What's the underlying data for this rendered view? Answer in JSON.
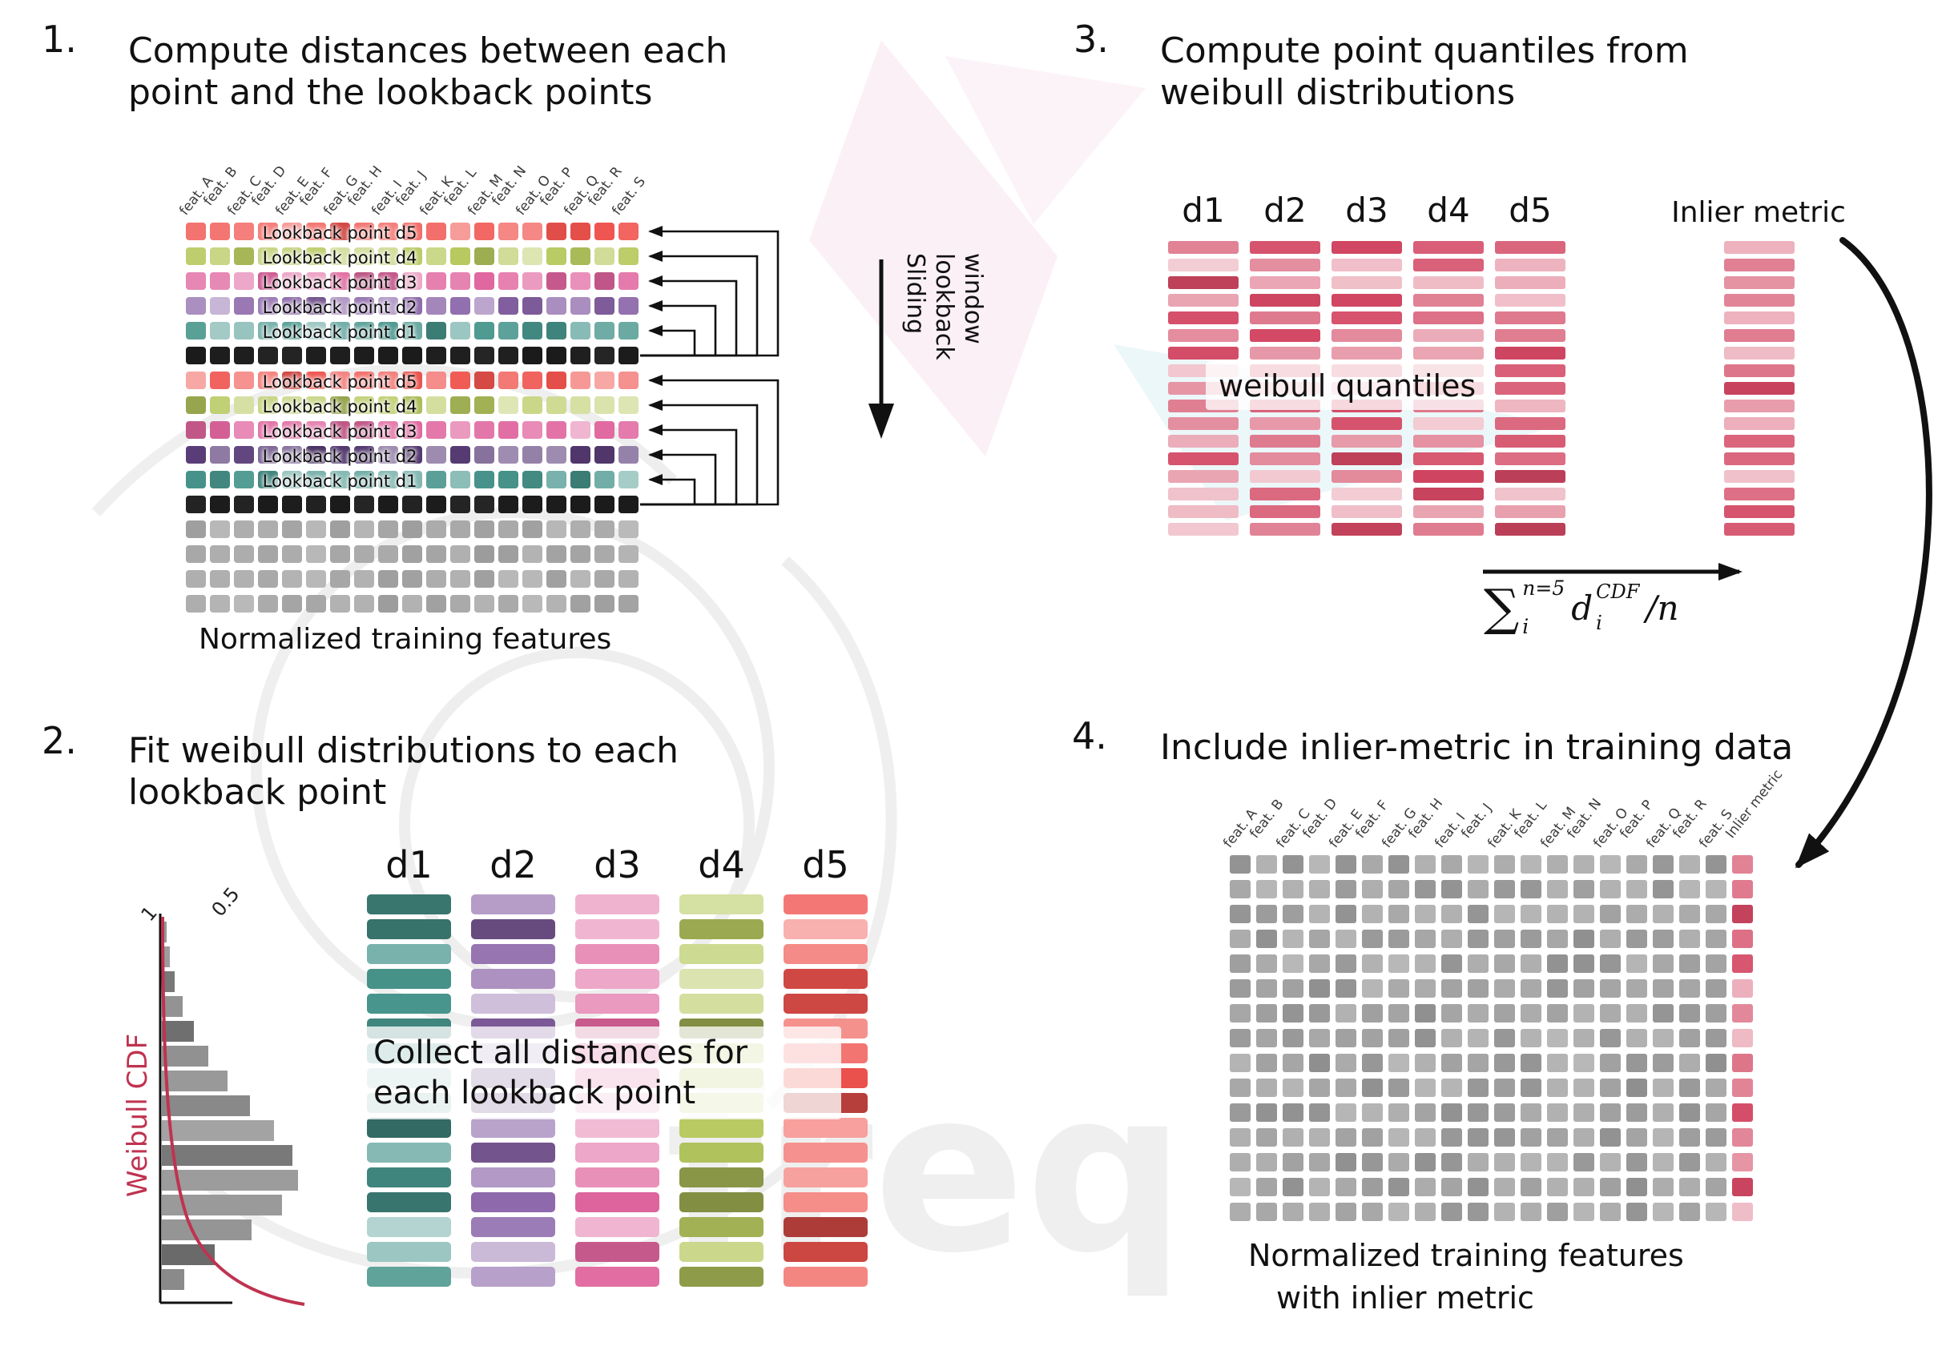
{
  "palette": {
    "red": "#f0534e",
    "yellowgreen": "#b7c95f",
    "pink": "#e0659e",
    "purple": "#8a64a8",
    "darkpurple": "#5a3d78",
    "teal": "#48968d",
    "black": "#1c1c1c",
    "gray": "#a3a3a3",
    "quantile_red": "#d34763",
    "accent_red": "#bf3350"
  },
  "step1": {
    "number": "1.",
    "title": "Compute distances between each point and the lookback points",
    "features": [
      "feat. A",
      "feat. B",
      "feat. C",
      "feat. D",
      "feat. E",
      "feat. F",
      "feat. G",
      "feat. H",
      "feat. I",
      "feat. J",
      "feat. K",
      "feat. L",
      "feat. M",
      "feat. N",
      "feat. O",
      "feat. P",
      "feat. Q",
      "feat. R",
      "feat. S"
    ],
    "rows": [
      {
        "color": "red",
        "label": "Lookback point d5"
      },
      {
        "color": "yellowgreen",
        "label": "Lookback point d4"
      },
      {
        "color": "pink",
        "label": "Lookback point d3"
      },
      {
        "color": "purple",
        "label": "Lookback point d2"
      },
      {
        "color": "teal",
        "label": "Lookback point d1"
      },
      {
        "color": "black",
        "label": ""
      },
      {
        "color": "red",
        "label": "Lookback point d5"
      },
      {
        "color": "yellowgreen",
        "label": "Lookback point d4"
      },
      {
        "color": "pink",
        "label": "Lookback point d3"
      },
      {
        "color": "darkpurple",
        "label": "Lookback point d2"
      },
      {
        "color": "teal",
        "label": "Lookback point d1"
      },
      {
        "color": "black",
        "label": ""
      },
      {
        "color": "gray",
        "label": ""
      },
      {
        "color": "gray",
        "label": ""
      },
      {
        "color": "gray",
        "label": ""
      },
      {
        "color": "gray",
        "label": ""
      }
    ],
    "sliding_label": "Sliding lookback window",
    "caption": "Normalized training features"
  },
  "step2": {
    "number": "2.",
    "title": "Fit weibull distributions to each lookback point",
    "columns": [
      {
        "label": "d1",
        "color": "teal"
      },
      {
        "label": "d2",
        "color": "purple"
      },
      {
        "label": "d3",
        "color": "pink"
      },
      {
        "label": "d4",
        "color": "yellowgreen"
      },
      {
        "label": "d5",
        "color": "red"
      }
    ],
    "bars_per_column": 16,
    "overlay": "Collect all distances for each lookback point",
    "cdf_label": "Weibull CDF",
    "ticks": [
      "1",
      "0.5"
    ],
    "hist": [
      6,
      10,
      16,
      26,
      40,
      58,
      82,
      110,
      140,
      163,
      170,
      150,
      112,
      66,
      28
    ]
  },
  "step3": {
    "number": "3.",
    "title": "Compute point quantiles from weibull distributions",
    "columns": [
      "d1",
      "d2",
      "d3",
      "d4",
      "d5"
    ],
    "bars_per_column": 17,
    "overlay": "weibull quantiles",
    "inlier_label": "Inlier metric",
    "formula": {
      "sum": "∑",
      "sup": "n=5",
      "sub": "i",
      "var": "d",
      "var_sup": "CDF",
      "var_sub": "i",
      "tail": "/n"
    }
  },
  "step4": {
    "number": "4.",
    "title": "Include inlier-metric in training data",
    "features": [
      "feat. A",
      "feat. B",
      "feat. C",
      "feat. D",
      "feat. E",
      "feat. F",
      "feat. G",
      "feat. H",
      "feat. I",
      "feat. J",
      "feat. K",
      "feat. L",
      "feat. M",
      "feat. N",
      "feat. O",
      "feat. P",
      "feat. Q",
      "feat. R",
      "feat. S",
      "Inlier metric"
    ],
    "rows": 15,
    "caption_line1": "Normalized training features",
    "caption_line2": "with inlier metric"
  },
  "watermark": {
    "text": "freq"
  }
}
